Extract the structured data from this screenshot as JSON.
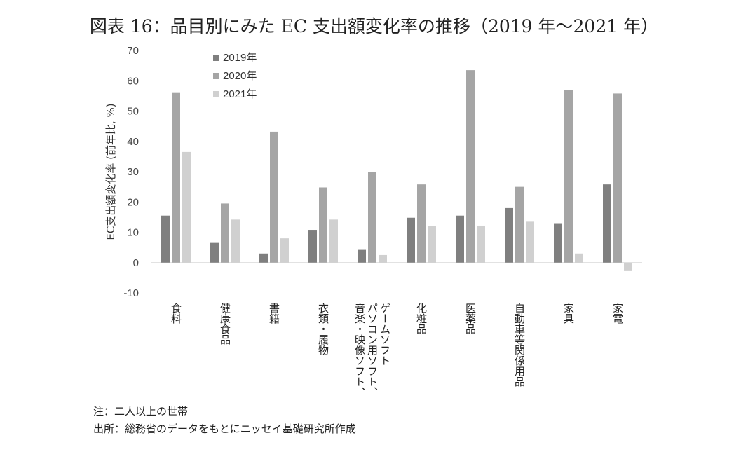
{
  "title": "図表 16：品目別にみた EC 支出額変化率の推移（2019 年〜2021 年）",
  "notes": {
    "note": "注：二人以上の世帯",
    "source": "出所：総務省のデータをもとにニッセイ基礎研究所作成"
  },
  "chart_data": {
    "type": "bar",
    "title": "図表 16：品目別にみた EC 支出額変化率の推移（2019 年〜2021 年）",
    "ylabel": "EC支出額変化率 (前年比, %)",
    "xlabel": "",
    "ylim": [
      -10,
      70
    ],
    "yticks": [
      -10,
      0,
      10,
      20,
      30,
      40,
      50,
      60,
      70
    ],
    "grid": false,
    "legend_position": "top-left",
    "categories": [
      [
        "食料"
      ],
      [
        "健康食品"
      ],
      [
        "書籍"
      ],
      [
        "衣類・履物"
      ],
      [
        "音楽・映像ソフト、",
        "パソコン用ソフト、",
        "ゲームソフト"
      ],
      [
        "化粧品"
      ],
      [
        "医薬品"
      ],
      [
        "自動車等関係用品"
      ],
      [
        "家具"
      ],
      [
        "家電"
      ]
    ],
    "series": [
      {
        "name": "2019年",
        "color": "#7f7f7f",
        "values": [
          15.5,
          6.5,
          3.0,
          10.8,
          4.2,
          14.8,
          15.5,
          18.0,
          13.0,
          25.8
        ]
      },
      {
        "name": "2020年",
        "color": "#a5a5a5",
        "values": [
          56.2,
          19.5,
          43.2,
          24.8,
          29.8,
          25.8,
          63.5,
          25.0,
          57.0,
          55.8
        ]
      },
      {
        "name": "2021年",
        "color": "#d0d0d0",
        "values": [
          36.5,
          14.2,
          8.0,
          14.2,
          2.5,
          12.0,
          12.2,
          13.5,
          3.0,
          -2.8
        ]
      }
    ]
  }
}
